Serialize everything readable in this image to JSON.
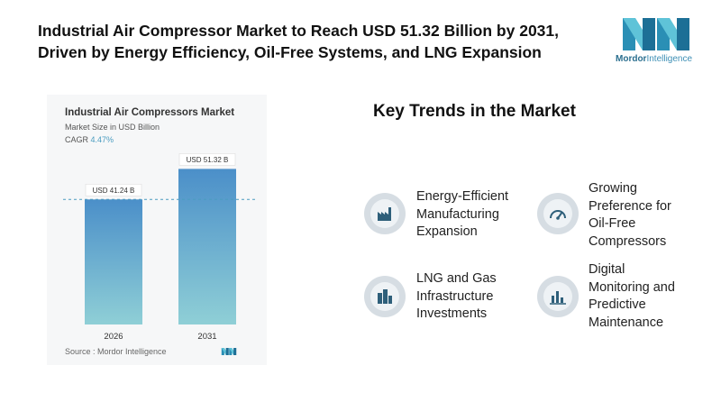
{
  "headline": {
    "line1": "Industrial Air Compressor Market to Reach USD 51.32 Billion by 2031,",
    "line2": "Driven by Energy Efficiency, Oil-Free Systems, and LNG Expansion"
  },
  "brand": {
    "name_part1": "Mordor",
    "name_part2": "Intelligence",
    "logo_icon": "mordor-intelligence-logo"
  },
  "chart_panel": {
    "title": "Industrial Air Compressors Market",
    "subtitle": "Market Size in USD Billion",
    "cagr_label": "CAGR",
    "cagr_value": "4.47%",
    "source": "Source : Mordor Intelligence"
  },
  "chart_data": {
    "type": "bar",
    "title": "Industrial Air Compressors Market",
    "ylabel": "Market Size in USD Billion",
    "categories": [
      "2026",
      "2031"
    ],
    "values": [
      41.24,
      51.32
    ],
    "data_labels": [
      "USD 41.24 B",
      "USD 51.32 B"
    ],
    "ylim": [
      0,
      55
    ],
    "bar_color": "#8fcfd6",
    "bar_color_top": "#4b8fc9",
    "reference_line": 41.24,
    "grid": false
  },
  "trends": {
    "title": "Key Trends in the Market",
    "items": [
      {
        "icon": "factory-icon",
        "lines": [
          "Energy-Efficient",
          "Manufacturing",
          "Expansion"
        ]
      },
      {
        "icon": "gauge-icon",
        "lines": [
          "Growing",
          "Preference for",
          "Oil-Free",
          "Compressors"
        ]
      },
      {
        "icon": "city-buildings-icon",
        "lines": [
          "LNG and Gas",
          "Infrastructure",
          "Investments"
        ]
      },
      {
        "icon": "bar-chart-icon",
        "lines": [
          "Digital",
          "Monitoring and",
          "Predictive",
          "Maintenance"
        ]
      }
    ]
  },
  "colors": {
    "accent": "#4a9cc0",
    "icon_bg": "#d6dde3",
    "icon_fg": "#2e5f7a"
  }
}
